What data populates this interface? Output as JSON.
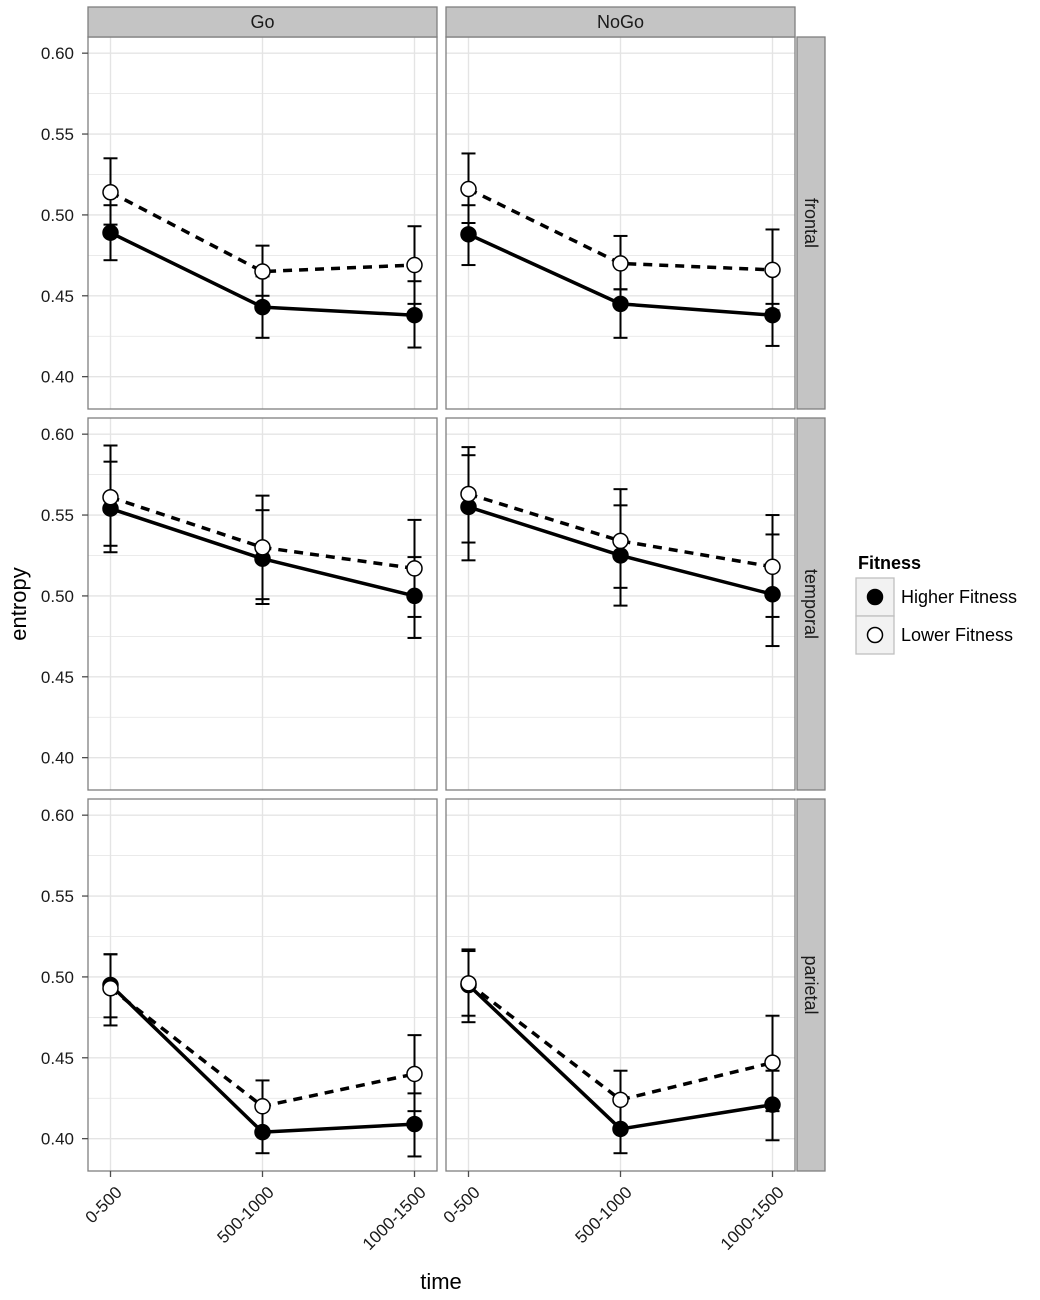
{
  "chart_data": {
    "type": "line",
    "xlabel": "time",
    "ylabel": "entropy",
    "categories": [
      "0-500",
      "500-1000",
      "1000-1500"
    ],
    "ylim": [
      0.38,
      0.61
    ],
    "yticks": [
      0.4,
      0.45,
      0.5,
      0.55,
      0.6
    ],
    "ytick_labels": [
      "0.40",
      "0.45",
      "0.50",
      "0.55",
      "0.60"
    ],
    "columns": [
      "Go",
      "NoGo"
    ],
    "rows": [
      "frontal",
      "temporal",
      "parietal"
    ],
    "legend": {
      "title": "Fitness",
      "entries": [
        {
          "name": "Higher Fitness",
          "marker": "filled-circle",
          "line": "solid"
        },
        {
          "name": "Lower Fitness",
          "marker": "open-circle",
          "line": "dashed"
        }
      ]
    },
    "panels": [
      {
        "row": "frontal",
        "col": "Go",
        "series": [
          {
            "name": "Higher Fitness",
            "values": [
              0.489,
              0.443,
              0.438
            ],
            "lower": [
              0.472,
              0.424,
              0.418
            ],
            "upper": [
              0.506,
              0.462,
              0.459
            ]
          },
          {
            "name": "Lower Fitness",
            "values": [
              0.514,
              0.465,
              0.469
            ],
            "lower": [
              0.494,
              0.45,
              0.445
            ],
            "upper": [
              0.535,
              0.481,
              0.493
            ]
          }
        ]
      },
      {
        "row": "frontal",
        "col": "NoGo",
        "series": [
          {
            "name": "Higher Fitness",
            "values": [
              0.488,
              0.445,
              0.438
            ],
            "lower": [
              0.469,
              0.424,
              0.419
            ],
            "upper": [
              0.506,
              0.454,
              0.445
            ]
          },
          {
            "name": "Lower Fitness",
            "values": [
              0.516,
              0.47,
              0.466
            ],
            "lower": [
              0.495,
              0.454,
              0.441
            ],
            "upper": [
              0.538,
              0.487,
              0.491
            ]
          }
        ]
      },
      {
        "row": "temporal",
        "col": "Go",
        "series": [
          {
            "name": "Higher Fitness",
            "values": [
              0.554,
              0.523,
              0.5
            ],
            "lower": [
              0.527,
              0.495,
              0.474
            ],
            "upper": [
              0.583,
              0.553,
              0.524
            ]
          },
          {
            "name": "Lower Fitness",
            "values": [
              0.561,
              0.53,
              0.517
            ],
            "lower": [
              0.531,
              0.498,
              0.487
            ],
            "upper": [
              0.593,
              0.562,
              0.547
            ]
          }
        ]
      },
      {
        "row": "temporal",
        "col": "NoGo",
        "series": [
          {
            "name": "Higher Fitness",
            "values": [
              0.555,
              0.525,
              0.501
            ],
            "lower": [
              0.522,
              0.494,
              0.469
            ],
            "upper": [
              0.587,
              0.556,
              0.538
            ]
          },
          {
            "name": "Lower Fitness",
            "values": [
              0.563,
              0.534,
              0.518
            ],
            "lower": [
              0.533,
              0.505,
              0.487
            ],
            "upper": [
              0.592,
              0.566,
              0.55
            ]
          }
        ]
      },
      {
        "row": "parietal",
        "col": "Go",
        "series": [
          {
            "name": "Higher Fitness",
            "values": [
              0.495,
              0.404,
              0.409
            ],
            "lower": [
              0.475,
              0.391,
              0.389
            ],
            "upper": [
              0.514,
              0.418,
              0.428
            ]
          },
          {
            "name": "Lower Fitness",
            "values": [
              0.493,
              0.42,
              0.44
            ],
            "lower": [
              0.47,
              0.404,
              0.417
            ],
            "upper": [
              0.514,
              0.436,
              0.464
            ]
          }
        ]
      },
      {
        "row": "parietal",
        "col": "NoGo",
        "series": [
          {
            "name": "Higher Fitness",
            "values": [
              0.495,
              0.406,
              0.421
            ],
            "lower": [
              0.476,
              0.391,
              0.399
            ],
            "upper": [
              0.516,
              0.422,
              0.442
            ]
          },
          {
            "name": "Lower Fitness",
            "values": [
              0.496,
              0.424,
              0.447
            ],
            "lower": [
              0.472,
              0.406,
              0.417
            ],
            "upper": [
              0.517,
              0.442,
              0.476
            ]
          }
        ]
      }
    ]
  }
}
